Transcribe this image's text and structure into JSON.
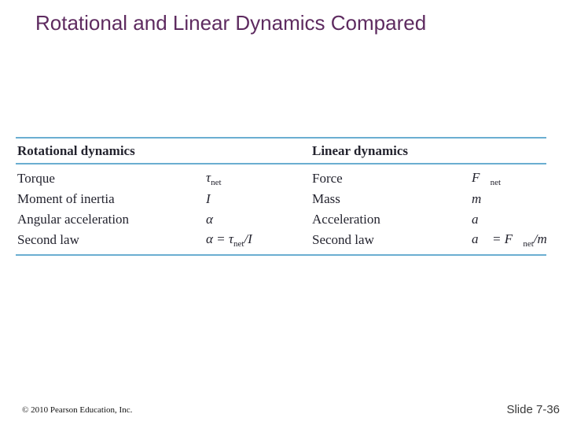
{
  "slide": {
    "title": "Rotational and Linear Dynamics Compared",
    "copyright": "© 2010 Pearson Education, Inc.",
    "slide_number": "Slide 7-36"
  },
  "colors": {
    "title_text": "#5E2B60",
    "table_rule": "#6BAED1",
    "table_text": "#23232E",
    "slide_number_text": "#3A3A3A",
    "background": "#FFFFFF"
  },
  "table": {
    "headers": {
      "rotational": "Rotational dynamics",
      "linear": "Linear dynamics"
    },
    "rows": [
      {
        "rot_label": "Torque",
        "rot_sym": {
          "main": "τ",
          "sub": "net",
          "tail": ""
        },
        "lin_label": "Force",
        "lin_sym": {
          "main": "F⃗",
          "sub": "net",
          "tail": ""
        }
      },
      {
        "rot_label": "Moment of inertia",
        "rot_sym": {
          "main": "I",
          "sub": "",
          "tail": ""
        },
        "lin_label": "Mass",
        "lin_sym": {
          "main": "m",
          "sub": "",
          "tail": ""
        }
      },
      {
        "rot_label": "Angular acceleration",
        "rot_sym": {
          "main": "α",
          "sub": "",
          "tail": ""
        },
        "lin_label": "Acceleration",
        "lin_sym": {
          "main": "a⃗",
          "sub": "",
          "tail": ""
        }
      },
      {
        "rot_label": "Second law",
        "rot_sym": {
          "main": "α = τ",
          "sub": "net",
          "tail": "/I"
        },
        "lin_label": "Second law",
        "lin_sym": {
          "main": "a⃗ = F⃗",
          "sub": "net",
          "tail": "/m"
        }
      }
    ]
  }
}
